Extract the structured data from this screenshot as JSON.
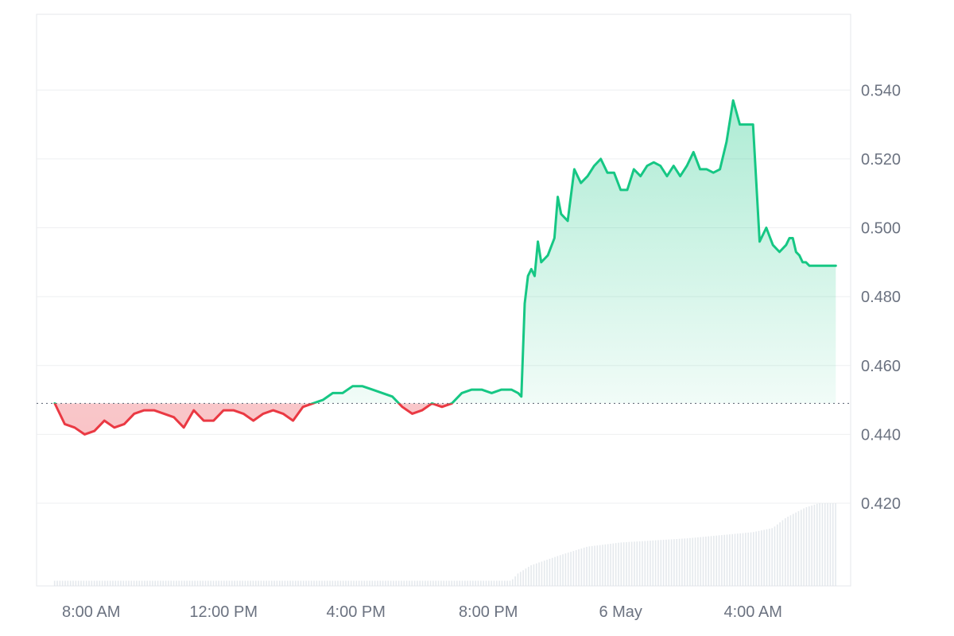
{
  "chart_data": {
    "type": "area",
    "baseline": 0.449,
    "grid": "horizontal",
    "ylim": [
      0.396,
      0.562
    ],
    "y_ticks": [
      {
        "value": 0.54,
        "label": "0.540"
      },
      {
        "value": 0.52,
        "label": "0.520"
      },
      {
        "value": 0.5,
        "label": "0.500"
      },
      {
        "value": 0.48,
        "label": "0.480"
      },
      {
        "value": 0.46,
        "label": "0.460"
      },
      {
        "value": 0.44,
        "label": "0.440"
      },
      {
        "value": 0.42,
        "label": "0.420"
      }
    ],
    "x_ticks": [
      {
        "label": "8:00 AM",
        "hour": 8
      },
      {
        "label": "12:00 PM",
        "hour": 12
      },
      {
        "label": "4:00 PM",
        "hour": 16
      },
      {
        "label": "8:00 PM",
        "hour": 20
      },
      {
        "label": "6 May",
        "hour": 24
      },
      {
        "label": "4:00 AM",
        "hour": 28
      }
    ],
    "price": {
      "hours": [
        6.9,
        7.0,
        7.2,
        7.5,
        7.8,
        8.1,
        8.4,
        8.7,
        9.0,
        9.3,
        9.6,
        9.9,
        10.2,
        10.5,
        10.8,
        11.1,
        11.4,
        11.7,
        12.0,
        12.3,
        12.6,
        12.9,
        13.2,
        13.5,
        13.8,
        14.1,
        14.4,
        14.7,
        15.0,
        15.3,
        15.6,
        15.9,
        16.2,
        16.5,
        16.8,
        17.1,
        17.4,
        17.7,
        18.0,
        18.3,
        18.6,
        18.9,
        19.2,
        19.5,
        19.8,
        20.1,
        20.4,
        20.7,
        20.9,
        21.0,
        21.1,
        21.2,
        21.3,
        21.4,
        21.5,
        21.6,
        21.8,
        22.0,
        22.1,
        22.2,
        22.4,
        22.6,
        22.8,
        23.0,
        23.2,
        23.4,
        23.6,
        23.8,
        24.0,
        24.2,
        24.4,
        24.6,
        24.8,
        25.0,
        25.2,
        25.4,
        25.6,
        25.8,
        26.0,
        26.2,
        26.4,
        26.6,
        26.8,
        27.0,
        27.2,
        27.4,
        27.6,
        27.8,
        28.0,
        28.2,
        28.4,
        28.6,
        28.8,
        29.0,
        29.1,
        29.2,
        29.3,
        29.4,
        29.5,
        29.6,
        29.7,
        29.8,
        29.9,
        30.0,
        30.1,
        30.2,
        30.4,
        30.5
      ],
      "values": [
        0.449,
        0.447,
        0.443,
        0.442,
        0.44,
        0.441,
        0.444,
        0.442,
        0.443,
        0.446,
        0.447,
        0.447,
        0.446,
        0.445,
        0.442,
        0.447,
        0.444,
        0.444,
        0.447,
        0.447,
        0.446,
        0.444,
        0.446,
        0.447,
        0.446,
        0.444,
        0.448,
        0.449,
        0.45,
        0.452,
        0.452,
        0.454,
        0.454,
        0.453,
        0.452,
        0.451,
        0.448,
        0.446,
        0.447,
        0.449,
        0.448,
        0.449,
        0.452,
        0.453,
        0.453,
        0.452,
        0.453,
        0.453,
        0.452,
        0.451,
        0.478,
        0.486,
        0.488,
        0.486,
        0.496,
        0.49,
        0.492,
        0.497,
        0.509,
        0.504,
        0.502,
        0.517,
        0.513,
        0.515,
        0.518,
        0.52,
        0.516,
        0.516,
        0.511,
        0.511,
        0.517,
        0.515,
        0.518,
        0.519,
        0.518,
        0.515,
        0.518,
        0.515,
        0.518,
        0.522,
        0.517,
        0.517,
        0.516,
        0.517,
        0.525,
        0.537,
        0.53,
        0.53,
        0.53,
        0.496,
        0.5,
        0.495,
        0.493,
        0.495,
        0.497,
        0.497,
        0.493,
        0.492,
        0.49,
        0.49,
        0.489,
        0.489,
        0.489,
        0.489,
        0.489,
        0.489,
        0.489,
        0.489
      ]
    },
    "volume": {
      "note_units": "relative",
      "points": [
        [
          6.9,
          0.05
        ],
        [
          20.7,
          0.05
        ],
        [
          20.9,
          0.12
        ],
        [
          21.3,
          0.2
        ],
        [
          22.2,
          0.3
        ],
        [
          23.0,
          0.38
        ],
        [
          24.0,
          0.42
        ],
        [
          26.0,
          0.46
        ],
        [
          28.0,
          0.52
        ],
        [
          28.6,
          0.56
        ],
        [
          29.0,
          0.66
        ],
        [
          29.6,
          0.76
        ],
        [
          30.0,
          0.8
        ],
        [
          30.5,
          0.8
        ]
      ]
    }
  }
}
